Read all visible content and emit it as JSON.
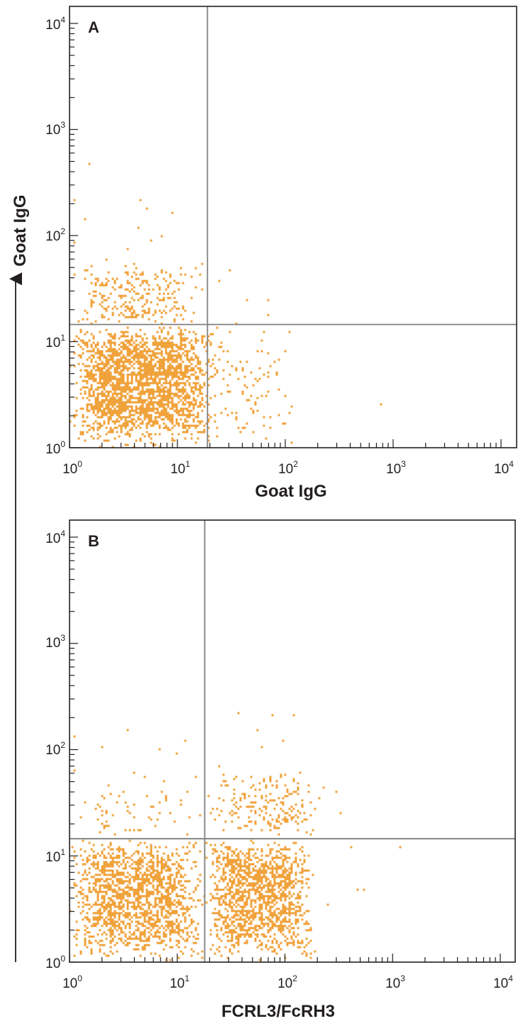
{
  "chart_data": [
    {
      "type": "scatter",
      "panel_label": "A",
      "xlabel": "Goat IgG",
      "ylabel": "Goat IgG",
      "x_scale": "log",
      "y_scale": "log",
      "xlim": [
        1,
        10000
      ],
      "ylim": [
        1,
        10000
      ],
      "x_tick_labels": [
        {
          "base": "10",
          "exp": "0"
        },
        {
          "base": "10",
          "exp": "1"
        },
        {
          "base": "10",
          "exp": "2"
        },
        {
          "base": "10",
          "exp": "3"
        },
        {
          "base": "10",
          "exp": "4"
        }
      ],
      "y_tick_labels": [
        {
          "base": "10",
          "exp": "0"
        },
        {
          "base": "10",
          "exp": "1"
        },
        {
          "base": "10",
          "exp": "2"
        },
        {
          "base": "10",
          "exp": "3"
        },
        {
          "base": "10",
          "exp": "4"
        }
      ],
      "quadrant_gate": {
        "x": 19,
        "y": 14.5
      },
      "point_color": "#f0a23b",
      "clusters": [
        {
          "name": "main",
          "count": 2400,
          "x_range": [
            1,
            25
          ],
          "y_range": [
            1,
            14.5
          ],
          "center": [
            4,
            5
          ]
        },
        {
          "name": "upper-left",
          "count": 260,
          "x_range": [
            1,
            19
          ],
          "y_range": [
            14.5,
            60
          ],
          "center": [
            3,
            20
          ]
        },
        {
          "name": "lower-right",
          "count": 90,
          "x_range": [
            19,
            120
          ],
          "y_range": [
            1,
            14.5
          ],
          "center": [
            30,
            4
          ]
        }
      ],
      "points": [
        [
          1.1,
          220
        ],
        [
          1.4,
          140
        ],
        [
          1.1,
          85
        ],
        [
          4.5,
          220
        ],
        [
          5.2,
          180
        ],
        [
          9,
          165
        ],
        [
          7.1,
          100
        ],
        [
          5.8,
          90
        ],
        [
          3.5,
          75
        ],
        [
          4.4,
          120
        ],
        [
          2.2,
          60
        ],
        [
          10.3,
          35
        ],
        [
          31,
          48
        ],
        [
          24,
          38
        ],
        [
          45,
          25
        ],
        [
          70,
          25
        ],
        [
          68,
          18
        ],
        [
          35,
          15
        ],
        [
          98,
          8
        ],
        [
          85,
          5
        ],
        [
          110,
          2.1
        ],
        [
          96,
          1.7
        ],
        [
          780,
          2.6
        ],
        [
          65,
          1.2
        ],
        [
          1.5,
          480
        ]
      ]
    },
    {
      "type": "scatter",
      "panel_label": "B",
      "xlabel": "FCRL3/FcRH3",
      "ylabel": "",
      "x_scale": "log",
      "y_scale": "log",
      "xlim": [
        1,
        10000
      ],
      "ylim": [
        1,
        10000
      ],
      "x_tick_labels": [
        {
          "base": "10",
          "exp": "0"
        },
        {
          "base": "10",
          "exp": "1"
        },
        {
          "base": "10",
          "exp": "2"
        },
        {
          "base": "10",
          "exp": "3"
        },
        {
          "base": "10",
          "exp": "4"
        }
      ],
      "y_tick_labels": [
        {
          "base": "10",
          "exp": "0"
        },
        {
          "base": "10",
          "exp": "1"
        },
        {
          "base": "10",
          "exp": "2"
        },
        {
          "base": "10",
          "exp": "3"
        },
        {
          "base": "10",
          "exp": "4"
        }
      ],
      "quadrant_gate": {
        "x": 18,
        "y": 14.5
      },
      "point_color": "#f0a23b",
      "clusters": [
        {
          "name": "left",
          "count": 1600,
          "x_range": [
            1,
            18
          ],
          "y_range": [
            1,
            14.5
          ],
          "center": [
            3.5,
            5
          ]
        },
        {
          "name": "right",
          "count": 1400,
          "x_range": [
            18,
            200
          ],
          "y_range": [
            1,
            14.5
          ],
          "center": [
            55,
            5
          ]
        },
        {
          "name": "upper-right",
          "count": 200,
          "x_range": [
            18,
            250
          ],
          "y_range": [
            14.5,
            70
          ],
          "center": [
            70,
            25
          ]
        },
        {
          "name": "upper-left",
          "count": 60,
          "x_range": [
            1,
            18
          ],
          "y_range": [
            14.5,
            60
          ],
          "center": [
            6,
            22
          ]
        }
      ],
      "points": [
        [
          1.1,
          130
        ],
        [
          2,
          105
        ],
        [
          3.5,
          150
        ],
        [
          12,
          120
        ],
        [
          7,
          100
        ],
        [
          10,
          90
        ],
        [
          37,
          225
        ],
        [
          75,
          210
        ],
        [
          120,
          210
        ],
        [
          55,
          150
        ],
        [
          95,
          120
        ],
        [
          60,
          105
        ],
        [
          1.1,
          65
        ],
        [
          4,
          60
        ],
        [
          15,
          55
        ],
        [
          25,
          70
        ],
        [
          300,
          40
        ],
        [
          330,
          25
        ],
        [
          420,
          12
        ],
        [
          1200,
          12
        ],
        [
          550,
          4.7
        ],
        [
          470,
          4.8
        ],
        [
          250,
          3.5
        ],
        [
          160,
          6
        ]
      ]
    }
  ]
}
